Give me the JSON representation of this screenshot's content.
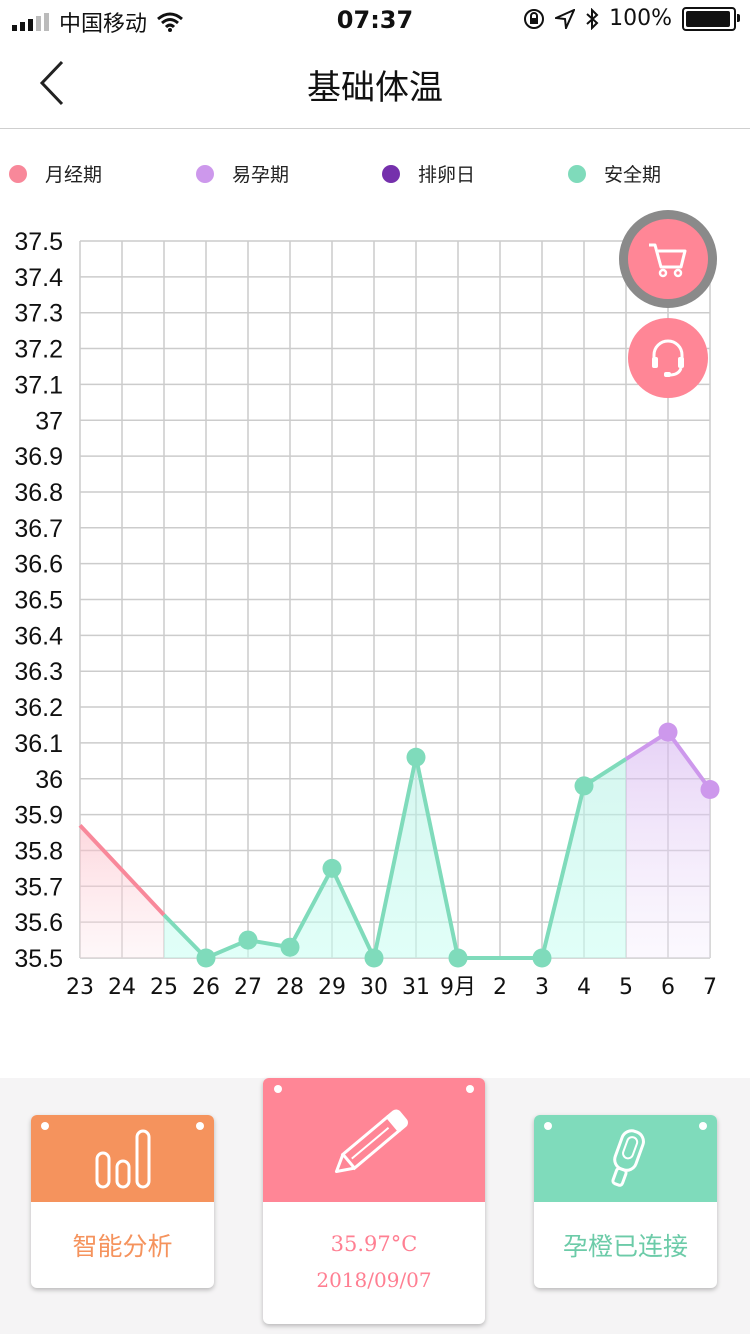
{
  "status_bar": {
    "carrier": "中国移动",
    "time": "07:37",
    "battery": "100%",
    "battery_level": 1.0,
    "signal_bars": 3,
    "signal_bars_total": 5
  },
  "nav": {
    "title": "基础体温"
  },
  "legend": [
    {
      "label": "月经期",
      "color": "#f8889a"
    },
    {
      "label": "易孕期",
      "color": "#cd98ec"
    },
    {
      "label": "排卵日",
      "color": "#7530ac"
    },
    {
      "label": "安全期",
      "color": "#7fdbbb"
    }
  ],
  "fabs": {
    "cart": "cart-icon",
    "service": "headset-icon"
  },
  "chart_data": {
    "type": "line",
    "categories": [
      "23",
      "24",
      "25",
      "26",
      "27",
      "28",
      "29",
      "30",
      "31",
      "9月",
      "2",
      "3",
      "4",
      "5",
      "6",
      "7"
    ],
    "values": [
      35.87,
      null,
      35.62,
      35.5,
      35.55,
      35.53,
      35.75,
      35.5,
      36.06,
      35.5,
      null,
      35.5,
      35.98,
      null,
      36.13,
      35.97
    ],
    "phases": [
      "月经期",
      "月经期",
      "月经期",
      "安全期",
      "安全期",
      "安全期",
      "安全期",
      "安全期",
      "安全期",
      "安全期",
      "安全期",
      "安全期",
      "安全期",
      "安全期",
      "易孕期",
      "易孕期"
    ],
    "ylim": [
      35.5,
      37.5
    ],
    "yticks": [
      "37.5",
      "37.4",
      "37.3",
      "37.2",
      "37.1",
      "37",
      "36.9",
      "36.8",
      "36.7",
      "36.6",
      "36.5",
      "36.4",
      "36.3",
      "36.2",
      "36.1",
      "36",
      "35.9",
      "35.8",
      "35.7",
      "35.6",
      "35.5"
    ],
    "grid": true,
    "legend_position": "top"
  },
  "cards": {
    "analysis": {
      "label": "智能分析",
      "color": "#f5935d"
    },
    "record": {
      "temperature": "35.97°C",
      "date": "2018/09/07",
      "color": "#ff8696"
    },
    "device": {
      "label": "孕橙已连接",
      "color": "#7fdbbb"
    }
  }
}
